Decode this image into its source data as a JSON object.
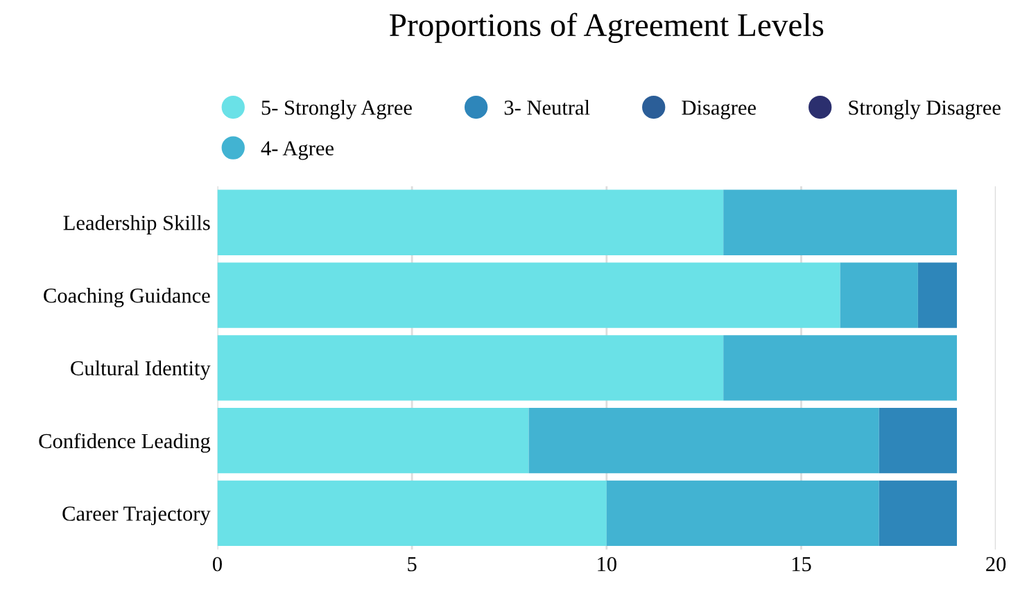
{
  "chart_data": {
    "type": "bar",
    "orientation": "horizontal",
    "stacked": true,
    "title": "Proportions of Agreement Levels",
    "categories": [
      "Leadership Skills",
      "Coaching Guidance",
      "Cultural Identity",
      "Confidence Leading",
      "Career Trajectory"
    ],
    "series": [
      {
        "name": "5- Strongly Agree",
        "color": "#6ae1e7",
        "values": [
          13,
          16,
          13,
          8,
          10
        ]
      },
      {
        "name": "4- Agree",
        "color": "#42b3d2",
        "values": [
          6,
          2,
          6,
          9,
          7
        ]
      },
      {
        "name": "3- Neutral",
        "color": "#2e86ba",
        "values": [
          0,
          1,
          0,
          2,
          2
        ]
      },
      {
        "name": "Disagree",
        "color": "#2b5e98",
        "values": [
          0,
          0,
          0,
          0,
          0
        ]
      },
      {
        "name": "Strongly Disagree",
        "color": "#2b2f6e",
        "values": [
          0,
          0,
          0,
          0,
          0
        ]
      }
    ],
    "xlim": [
      0,
      20
    ],
    "xticks": [
      0,
      5,
      10,
      15,
      20
    ],
    "grid": "x",
    "legend": "top"
  }
}
